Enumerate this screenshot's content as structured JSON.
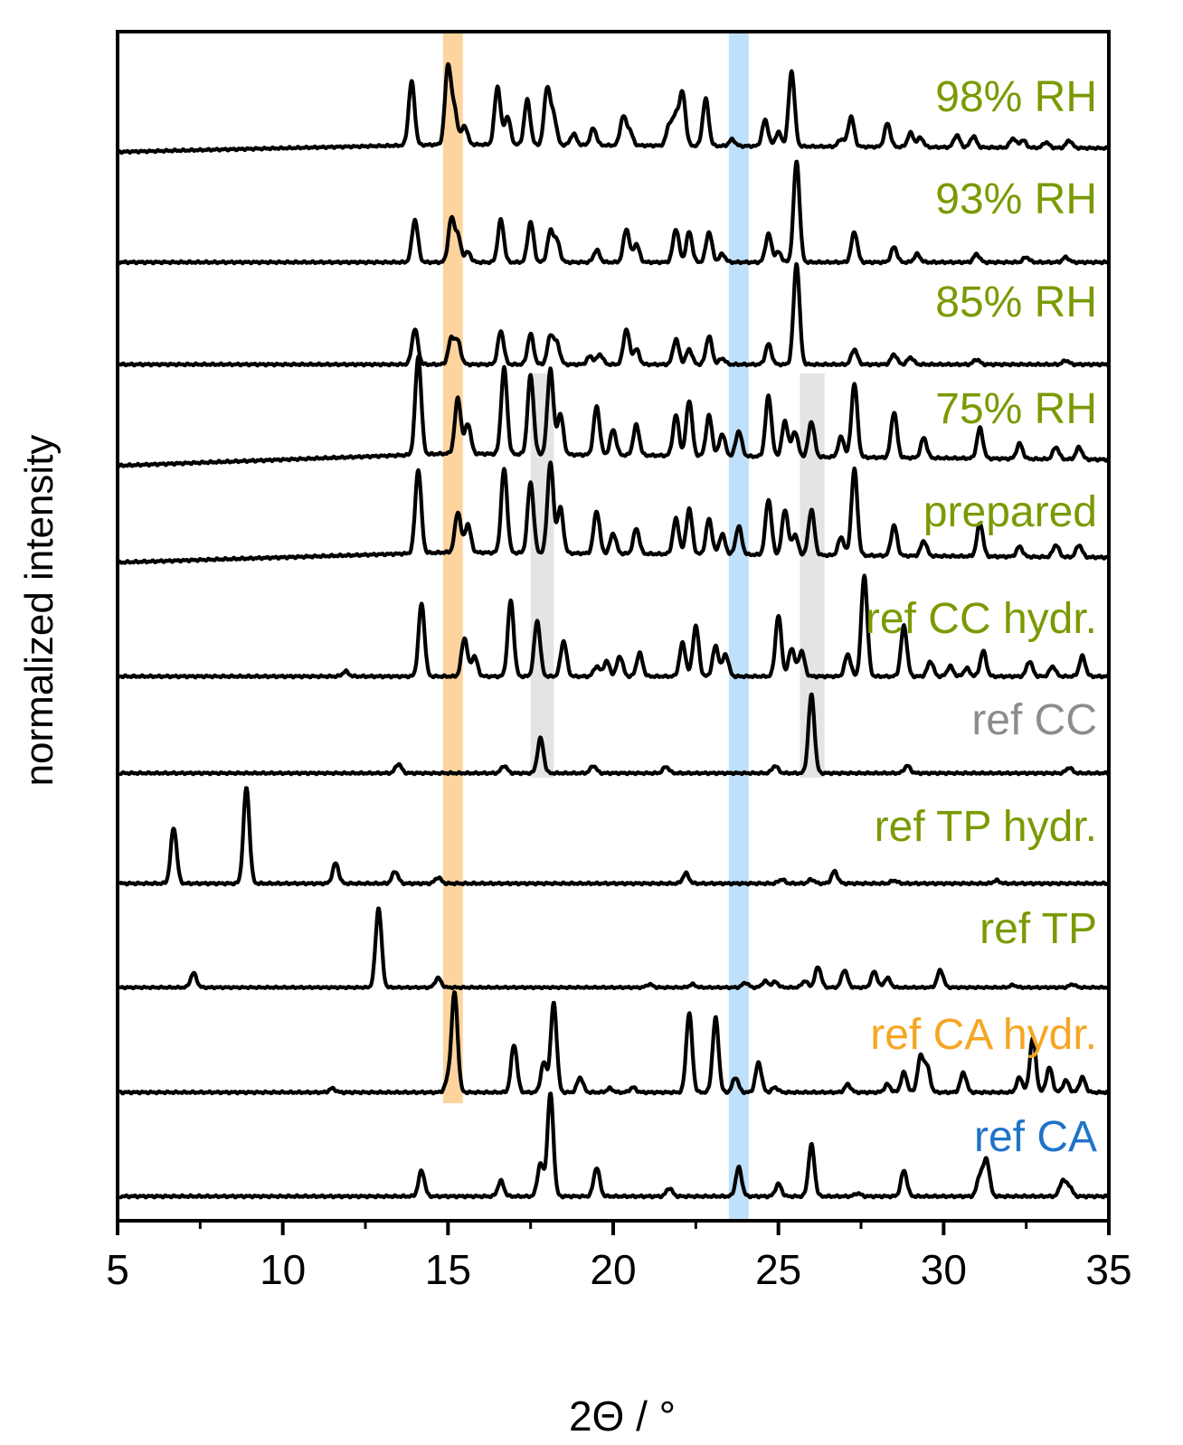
{
  "chart_data": {
    "type": "line",
    "title": "",
    "xlabel": "2Θ / °",
    "ylabel": "normalized intensity",
    "xlim": [
      5,
      35
    ],
    "xticks": [
      5,
      10,
      15,
      20,
      25,
      30,
      35
    ],
    "xtick_labels": [
      "5",
      "10",
      "15",
      "20",
      "25",
      "30",
      "35"
    ],
    "y_ticks_shown": false,
    "highlight_bands": [
      {
        "name": "orange-band",
        "color": "#fdd49e",
        "x_range": [
          14.85,
          15.45
        ],
        "extends": "from top through ref CA hydr."
      },
      {
        "name": "blue-band",
        "color": "#bfe0fb",
        "x_range": [
          23.5,
          24.1
        ],
        "extends": "full height"
      },
      {
        "name": "gray-band-1",
        "color": "#e4e4e4",
        "x_range": [
          17.5,
          18.2
        ],
        "extends": "75% RH through ref CC"
      },
      {
        "name": "gray-band-2",
        "color": "#e4e4e4",
        "x_range": [
          25.65,
          26.4
        ],
        "extends": "75% RH through ref CC"
      }
    ],
    "series": [
      {
        "name": "98% RH",
        "color": "#7a9a01",
        "baseline": 0.08,
        "peaks": [
          [
            13.9,
            0.68
          ],
          [
            15.0,
            0.83
          ],
          [
            15.2,
            0.35
          ],
          [
            15.5,
            0.2
          ],
          [
            16.5,
            0.62
          ],
          [
            16.8,
            0.3
          ],
          [
            17.4,
            0.48
          ],
          [
            18.0,
            0.6
          ],
          [
            18.2,
            0.3
          ],
          [
            18.8,
            0.12
          ],
          [
            19.4,
            0.18
          ],
          [
            20.3,
            0.3
          ],
          [
            20.5,
            0.15
          ],
          [
            21.7,
            0.22
          ],
          [
            21.9,
            0.3
          ],
          [
            22.1,
            0.55
          ],
          [
            22.8,
            0.5
          ],
          [
            23.6,
            0.07
          ],
          [
            24.6,
            0.28
          ],
          [
            25.0,
            0.15
          ],
          [
            25.4,
            0.8
          ],
          [
            26.9,
            0.08
          ],
          [
            27.2,
            0.32
          ],
          [
            28.3,
            0.25
          ],
          [
            29.0,
            0.15
          ],
          [
            29.3,
            0.1
          ],
          [
            30.4,
            0.13
          ],
          [
            30.9,
            0.12
          ],
          [
            32.1,
            0.1
          ],
          [
            32.4,
            0.08
          ],
          [
            33.1,
            0.06
          ],
          [
            33.8,
            0.08
          ]
        ]
      },
      {
        "name": "93% RH",
        "color": "#7a9a01",
        "baseline": 0.0,
        "peaks": [
          [
            14.0,
            0.42
          ],
          [
            15.1,
            0.42
          ],
          [
            15.3,
            0.25
          ],
          [
            15.6,
            0.1
          ],
          [
            16.6,
            0.42
          ],
          [
            17.5,
            0.4
          ],
          [
            18.1,
            0.3
          ],
          [
            18.3,
            0.2
          ],
          [
            19.5,
            0.12
          ],
          [
            20.4,
            0.33
          ],
          [
            20.7,
            0.18
          ],
          [
            21.9,
            0.33
          ],
          [
            22.3,
            0.3
          ],
          [
            22.9,
            0.3
          ],
          [
            23.3,
            0.08
          ],
          [
            24.7,
            0.28
          ],
          [
            25.0,
            0.1
          ],
          [
            25.55,
            1.0
          ],
          [
            27.3,
            0.3
          ],
          [
            28.5,
            0.15
          ],
          [
            29.2,
            0.08
          ],
          [
            31.0,
            0.08
          ],
          [
            32.5,
            0.05
          ],
          [
            33.7,
            0.05
          ]
        ]
      },
      {
        "name": "85% RH",
        "color": "#7a9a01",
        "baseline": 0.0,
        "peaks": [
          [
            14.0,
            0.35
          ],
          [
            15.1,
            0.25
          ],
          [
            15.3,
            0.22
          ],
          [
            16.6,
            0.33
          ],
          [
            17.5,
            0.3
          ],
          [
            18.1,
            0.28
          ],
          [
            18.3,
            0.2
          ],
          [
            19.3,
            0.08
          ],
          [
            19.6,
            0.1
          ],
          [
            20.4,
            0.35
          ],
          [
            20.7,
            0.15
          ],
          [
            21.9,
            0.25
          ],
          [
            22.3,
            0.15
          ],
          [
            22.9,
            0.28
          ],
          [
            23.3,
            0.06
          ],
          [
            24.7,
            0.2
          ],
          [
            25.55,
            1.0
          ],
          [
            27.3,
            0.15
          ],
          [
            28.5,
            0.1
          ],
          [
            29.0,
            0.07
          ],
          [
            31.0,
            0.05
          ],
          [
            33.7,
            0.04
          ]
        ]
      },
      {
        "name": "75% RH",
        "color": "#7a9a01",
        "baseline": 0.12,
        "peaks": [
          [
            14.1,
            0.97
          ],
          [
            15.3,
            0.55
          ],
          [
            15.6,
            0.3
          ],
          [
            16.7,
            0.85
          ],
          [
            17.5,
            0.78
          ],
          [
            18.1,
            0.85
          ],
          [
            18.4,
            0.4
          ],
          [
            19.5,
            0.48
          ],
          [
            20.0,
            0.25
          ],
          [
            20.7,
            0.3
          ],
          [
            21.9,
            0.4
          ],
          [
            22.3,
            0.55
          ],
          [
            22.9,
            0.4
          ],
          [
            23.3,
            0.22
          ],
          [
            23.8,
            0.25
          ],
          [
            24.7,
            0.6
          ],
          [
            25.2,
            0.35
          ],
          [
            25.5,
            0.25
          ],
          [
            26.0,
            0.35
          ],
          [
            26.9,
            0.2
          ],
          [
            27.3,
            0.73
          ],
          [
            28.5,
            0.45
          ],
          [
            29.4,
            0.2
          ],
          [
            31.1,
            0.3
          ],
          [
            32.3,
            0.15
          ],
          [
            33.4,
            0.12
          ],
          [
            34.1,
            0.12
          ]
        ]
      },
      {
        "name": "prepared",
        "color": "#7a9a01",
        "baseline": 0.1,
        "peaks": [
          [
            14.1,
            0.83
          ],
          [
            15.3,
            0.4
          ],
          [
            15.6,
            0.28
          ],
          [
            16.7,
            0.83
          ],
          [
            17.5,
            0.7
          ],
          [
            18.1,
            0.9
          ],
          [
            18.4,
            0.45
          ],
          [
            19.5,
            0.42
          ],
          [
            20.0,
            0.2
          ],
          [
            20.7,
            0.25
          ],
          [
            21.9,
            0.35
          ],
          [
            22.3,
            0.45
          ],
          [
            22.9,
            0.35
          ],
          [
            23.3,
            0.2
          ],
          [
            23.8,
            0.28
          ],
          [
            24.7,
            0.55
          ],
          [
            25.2,
            0.45
          ],
          [
            25.5,
            0.2
          ],
          [
            26.0,
            0.45
          ],
          [
            26.9,
            0.18
          ],
          [
            27.3,
            0.85
          ],
          [
            28.5,
            0.3
          ],
          [
            29.4,
            0.15
          ],
          [
            31.1,
            0.33
          ],
          [
            32.3,
            0.1
          ],
          [
            33.4,
            0.12
          ],
          [
            34.1,
            0.12
          ]
        ]
      },
      {
        "name": "ref CC hydr.",
        "color": "#7a9a01",
        "baseline": 0.0,
        "peaks": [
          [
            11.9,
            0.05
          ],
          [
            14.2,
            0.72
          ],
          [
            15.5,
            0.38
          ],
          [
            15.8,
            0.2
          ],
          [
            16.9,
            0.75
          ],
          [
            17.7,
            0.55
          ],
          [
            18.5,
            0.35
          ],
          [
            19.5,
            0.1
          ],
          [
            19.8,
            0.15
          ],
          [
            20.2,
            0.2
          ],
          [
            20.8,
            0.23
          ],
          [
            22.1,
            0.33
          ],
          [
            22.5,
            0.5
          ],
          [
            23.1,
            0.3
          ],
          [
            23.4,
            0.22
          ],
          [
            25.0,
            0.6
          ],
          [
            25.4,
            0.28
          ],
          [
            25.7,
            0.25
          ],
          [
            27.1,
            0.22
          ],
          [
            27.6,
            1.0
          ],
          [
            28.8,
            0.5
          ],
          [
            29.6,
            0.15
          ],
          [
            30.2,
            0.1
          ],
          [
            30.7,
            0.08
          ],
          [
            31.2,
            0.25
          ],
          [
            32.6,
            0.15
          ],
          [
            33.3,
            0.1
          ],
          [
            34.2,
            0.2
          ]
        ]
      },
      {
        "name": "ref CC",
        "color": "#8c8c8c",
        "baseline": 0.0,
        "peaks": [
          [
            13.5,
            0.1
          ],
          [
            16.7,
            0.08
          ],
          [
            17.8,
            0.38
          ],
          [
            19.4,
            0.08
          ],
          [
            21.6,
            0.07
          ],
          [
            24.9,
            0.08
          ],
          [
            26.0,
            0.85
          ],
          [
            28.9,
            0.08
          ],
          [
            33.8,
            0.06
          ]
        ]
      },
      {
        "name": "ref TP hydr.",
        "color": "#7a9a01",
        "baseline": 0.0,
        "peaks": [
          [
            6.7,
            0.55
          ],
          [
            8.9,
            0.95
          ],
          [
            11.6,
            0.2
          ],
          [
            13.4,
            0.12
          ],
          [
            14.7,
            0.06
          ],
          [
            22.2,
            0.1
          ],
          [
            25.1,
            0.04
          ],
          [
            26.0,
            0.04
          ],
          [
            26.7,
            0.12
          ],
          [
            28.5,
            0.03
          ],
          [
            31.6,
            0.03
          ]
        ]
      },
      {
        "name": "ref TP",
        "color": "#7a9a01",
        "baseline": 0.0,
        "peaks": [
          [
            7.3,
            0.18
          ],
          [
            12.9,
            1.0
          ],
          [
            14.7,
            0.12
          ],
          [
            21.1,
            0.04
          ],
          [
            22.4,
            0.04
          ],
          [
            24.0,
            0.06
          ],
          [
            24.6,
            0.08
          ],
          [
            24.9,
            0.07
          ],
          [
            25.8,
            0.08
          ],
          [
            26.2,
            0.26
          ],
          [
            27.0,
            0.22
          ],
          [
            27.9,
            0.2
          ],
          [
            28.3,
            0.12
          ],
          [
            29.9,
            0.22
          ],
          [
            32.1,
            0.03
          ],
          [
            33.9,
            0.04
          ]
        ]
      },
      {
        "name": "ref CA hydr.",
        "color": "#f5a623",
        "baseline": 0.0,
        "peaks": [
          [
            11.5,
            0.04
          ],
          [
            15.0,
            0.12
          ],
          [
            15.2,
            1.0
          ],
          [
            17.0,
            0.48
          ],
          [
            17.9,
            0.3
          ],
          [
            18.2,
            0.9
          ],
          [
            19.0,
            0.15
          ],
          [
            19.9,
            0.04
          ],
          [
            20.6,
            0.05
          ],
          [
            22.3,
            0.8
          ],
          [
            23.1,
            0.75
          ],
          [
            23.7,
            0.15
          ],
          [
            24.4,
            0.3
          ],
          [
            24.9,
            0.05
          ],
          [
            27.1,
            0.08
          ],
          [
            28.3,
            0.08
          ],
          [
            28.8,
            0.2
          ],
          [
            29.3,
            0.35
          ],
          [
            29.5,
            0.25
          ],
          [
            30.6,
            0.2
          ],
          [
            32.3,
            0.15
          ],
          [
            32.7,
            0.55
          ],
          [
            33.2,
            0.25
          ],
          [
            33.7,
            0.12
          ],
          [
            34.2,
            0.15
          ]
        ]
      },
      {
        "name": "ref CA",
        "color": "#1f73c8",
        "baseline": 0.0,
        "peaks": [
          [
            14.2,
            0.25
          ],
          [
            16.6,
            0.15
          ],
          [
            17.8,
            0.32
          ],
          [
            18.1,
            1.0
          ],
          [
            19.5,
            0.28
          ],
          [
            21.7,
            0.08
          ],
          [
            23.8,
            0.28
          ],
          [
            25.0,
            0.12
          ],
          [
            26.0,
            0.5
          ],
          [
            27.4,
            0.03
          ],
          [
            28.8,
            0.25
          ],
          [
            31.1,
            0.2
          ],
          [
            31.3,
            0.35
          ],
          [
            33.6,
            0.15
          ],
          [
            33.8,
            0.1
          ]
        ]
      }
    ]
  }
}
